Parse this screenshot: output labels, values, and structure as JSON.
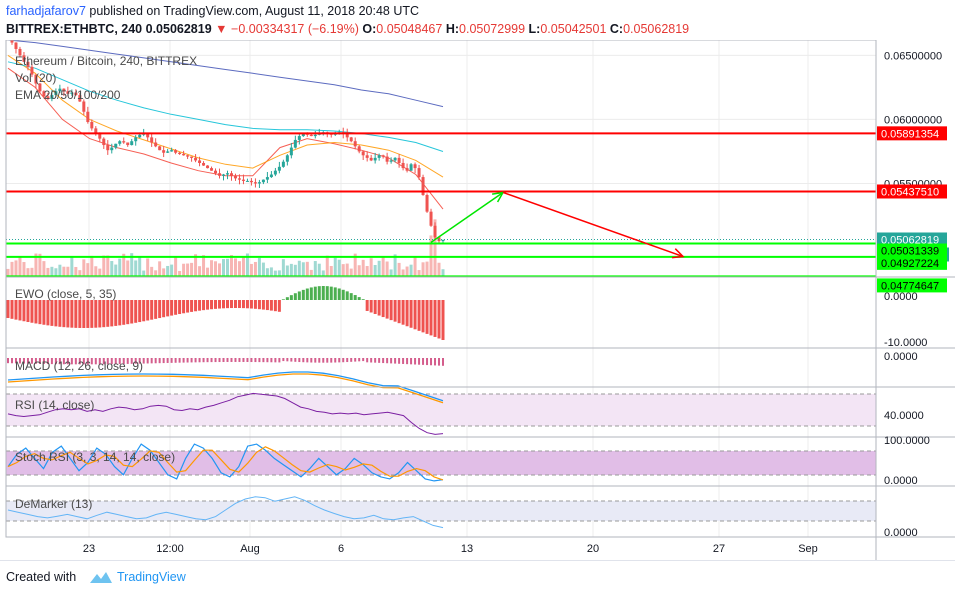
{
  "header": {
    "author": "farhadjafarov7",
    "published_text": " published on TradingView.com, August 11, 2018 20:48 UTC",
    "symbol": "BITTREX:ETHBTC, 240",
    "last": "0.05062819",
    "change": "−0.00334317 (−6.19%)",
    "o_label": "O:",
    "o_val": "0.05048467",
    "h_label": "H:",
    "h_val": "0.05072999",
    "l_label": "L:",
    "l_val": "0.05042501",
    "c_label": "C:",
    "c_val": "0.05062819"
  },
  "footer": {
    "created_with": "Created with",
    "brand": "TradingView"
  },
  "chart_data": {
    "type": "line",
    "title": "Ethereum / Bitcoin, 240, BITTREX",
    "indicators_on_price": [
      "Vol (20)",
      "EMA 20/50/100/200"
    ],
    "x_ticks": [
      "23",
      "12:00",
      "Aug",
      "6",
      "13",
      "20",
      "27",
      "Sep"
    ],
    "price_axis": {
      "range": [
        0.0477,
        0.0662
      ],
      "ticks": [
        "0.06500000",
        "0.06000000",
        "0.05500000"
      ],
      "marked_labels": [
        {
          "text": "0.05891354",
          "value": 0.05891354,
          "kind": "red"
        },
        {
          "text": "0.05437510",
          "value": 0.0543751,
          "kind": "red"
        },
        {
          "text": "0.05062819",
          "value": 0.05062819,
          "kind": "last"
        },
        {
          "text": "03:11:19",
          "kind": "timer"
        },
        {
          "text": "0.05031339",
          "value": 0.05031339,
          "kind": "green"
        },
        {
          "text": "0.04927224",
          "value": 0.04927224,
          "kind": "green"
        },
        {
          "text": "0.04774647",
          "value": 0.04774647,
          "kind": "green"
        }
      ]
    },
    "horizontal_levels": [
      {
        "value": 0.05891354,
        "color": "#ff0000"
      },
      {
        "value": 0.0543751,
        "color": "#ff0000"
      },
      {
        "value": 0.05031339,
        "color": "#00ff00"
      },
      {
        "value": 0.04927224,
        "color": "#00ff00"
      },
      {
        "value": 0.04774647,
        "color": "#00ff00"
      }
    ],
    "arrows": [
      {
        "color": "#00e600",
        "from": {
          "x": "Aug 11",
          "y": 0.0504
        },
        "to": {
          "x": "Aug 15",
          "y": 0.0543
        }
      },
      {
        "color": "#ff0000",
        "from": {
          "x": "Aug 15",
          "y": 0.0543
        },
        "to": {
          "x": "Aug 25",
          "y": 0.0493
        }
      }
    ],
    "price_close": [
      0.0665,
      0.066,
      0.0655,
      0.065,
      0.0645,
      0.0641,
      0.0635,
      0.0628,
      0.0622,
      0.0618,
      0.0616,
      0.0619,
      0.0622,
      0.0624,
      0.0622,
      0.062,
      0.0621,
      0.0619,
      0.0614,
      0.0606,
      0.0598,
      0.0593,
      0.0589,
      0.0585,
      0.058,
      0.0576,
      0.0578,
      0.0581,
      0.0583,
      0.0582,
      0.058,
      0.0583,
      0.0586,
      0.0588,
      0.0589,
      0.0586,
      0.0582,
      0.0579,
      0.0576,
      0.0574,
      0.0575,
      0.0576,
      0.0574,
      0.0573,
      0.0572,
      0.0571,
      0.057,
      0.0568,
      0.0566,
      0.0564,
      0.0562,
      0.056,
      0.0558,
      0.0556,
      0.0557,
      0.0558,
      0.0556,
      0.0554,
      0.0553,
      0.0552,
      0.0552,
      0.0551,
      0.055,
      0.0551,
      0.0553,
      0.0555,
      0.0557,
      0.056,
      0.0563,
      0.0567,
      0.0572,
      0.0578,
      0.0584,
      0.0587,
      0.0589,
      0.0588,
      0.0587,
      0.0588,
      0.0589,
      0.059,
      0.0589,
      0.0588,
      0.0589,
      0.059,
      0.0589,
      0.0586,
      0.0583,
      0.0579,
      0.0575,
      0.0572,
      0.057,
      0.0568,
      0.057,
      0.0572,
      0.0571,
      0.0567,
      0.0568,
      0.057,
      0.0566,
      0.0562,
      0.056,
      0.0565,
      0.0562,
      0.0555,
      0.0541,
      0.0528,
      0.0517,
      0.0508,
      0.0505,
      0.0506
    ],
    "ema": [
      {
        "name": "EMA 20",
        "color": "#f44336",
        "values": [
          0.064,
          0.0625,
          0.06,
          0.0585,
          0.0578,
          0.0573,
          0.0566,
          0.056,
          0.0556,
          0.0556,
          0.0578,
          0.0585,
          0.0581,
          0.0576,
          0.057,
          0.0557,
          0.053
        ]
      },
      {
        "name": "EMA 50",
        "color": "#ff9800",
        "values": [
          0.065,
          0.0636,
          0.0615,
          0.06,
          0.0591,
          0.0584,
          0.0577,
          0.057,
          0.0565,
          0.0562,
          0.0572,
          0.058,
          0.0582,
          0.058,
          0.0576,
          0.0568,
          0.0555
        ]
      },
      {
        "name": "EMA 100",
        "color": "#00bcd4",
        "values": [
          0.0645,
          0.064,
          0.0631,
          0.0622,
          0.0615,
          0.0609,
          0.0604,
          0.06,
          0.0596,
          0.0593,
          0.0592,
          0.0592,
          0.0591,
          0.0589,
          0.0586,
          0.0582,
          0.0575
        ]
      },
      {
        "name": "EMA 200",
        "color": "#3f51b5",
        "values": [
          0.0662,
          0.066,
          0.0657,
          0.0654,
          0.0651,
          0.0648,
          0.0645,
          0.0642,
          0.0639,
          0.0636,
          0.0633,
          0.063,
          0.0627,
          0.0623,
          0.062,
          0.0615,
          0.061
        ]
      }
    ],
    "panels": [
      {
        "name": "EWO (close, 5, 35)",
        "ticks": [
          "0.0000",
          "-10.0000"
        ]
      },
      {
        "name": "MACD (12, 26, close, 9)",
        "ticks": [
          "0.0000"
        ]
      },
      {
        "name": "RSI (14, close)",
        "ticks": [
          "40.0000"
        ],
        "rsi": [
          42,
          40,
          39,
          40,
          41,
          44,
          47,
          48,
          47,
          48,
          45,
          47,
          45,
          48,
          50,
          49,
          47,
          48,
          51,
          52,
          51,
          47,
          46,
          48,
          47,
          50,
          52,
          55,
          58,
          62,
          64,
          66,
          65,
          64,
          63,
          60,
          55,
          50,
          48,
          45,
          44,
          42,
          43,
          42,
          43,
          41,
          42,
          43,
          44,
          42,
          40,
          32,
          25,
          20,
          18,
          19
        ]
      },
      {
        "name": "Stoch RSI (3, 3, 14, 14, close)",
        "ticks": [
          "100.0000",
          "0.0000"
        ],
        "k": [
          40,
          70,
          85,
          60,
          35,
          75,
          90,
          60,
          30,
          50,
          85,
          70,
          40,
          20,
          60,
          95,
          80,
          50,
          20,
          10,
          60,
          95,
          85,
          60,
          25,
          15,
          40,
          90,
          95,
          80,
          60,
          45,
          30,
          15,
          35,
          60,
          40,
          20,
          35,
          60,
          45,
          25,
          15,
          10,
          25,
          50,
          30,
          10,
          5,
          8
        ]
      },
      {
        "name": "DeMarker (13)",
        "ticks": [
          "0.0000"
        ],
        "dem": [
          0.5,
          0.45,
          0.4,
          0.35,
          0.32,
          0.36,
          0.4,
          0.35,
          0.3,
          0.38,
          0.45,
          0.4,
          0.35,
          0.3,
          0.32,
          0.4,
          0.45,
          0.4,
          0.35,
          0.3,
          0.28,
          0.35,
          0.5,
          0.65,
          0.75,
          0.8,
          0.78,
          0.7,
          0.75,
          0.8,
          0.72,
          0.6,
          0.5,
          0.42,
          0.35,
          0.3,
          0.32,
          0.38,
          0.3,
          0.28,
          0.32,
          0.35,
          0.25,
          0.15,
          0.1
        ]
      }
    ]
  },
  "colors": {
    "up": "#26a69a",
    "down": "#ef5350",
    "level_red": "#ff0000",
    "level_green": "#00ff00",
    "last_price_bg": "#26a69a",
    "grid": "#ececec"
  }
}
